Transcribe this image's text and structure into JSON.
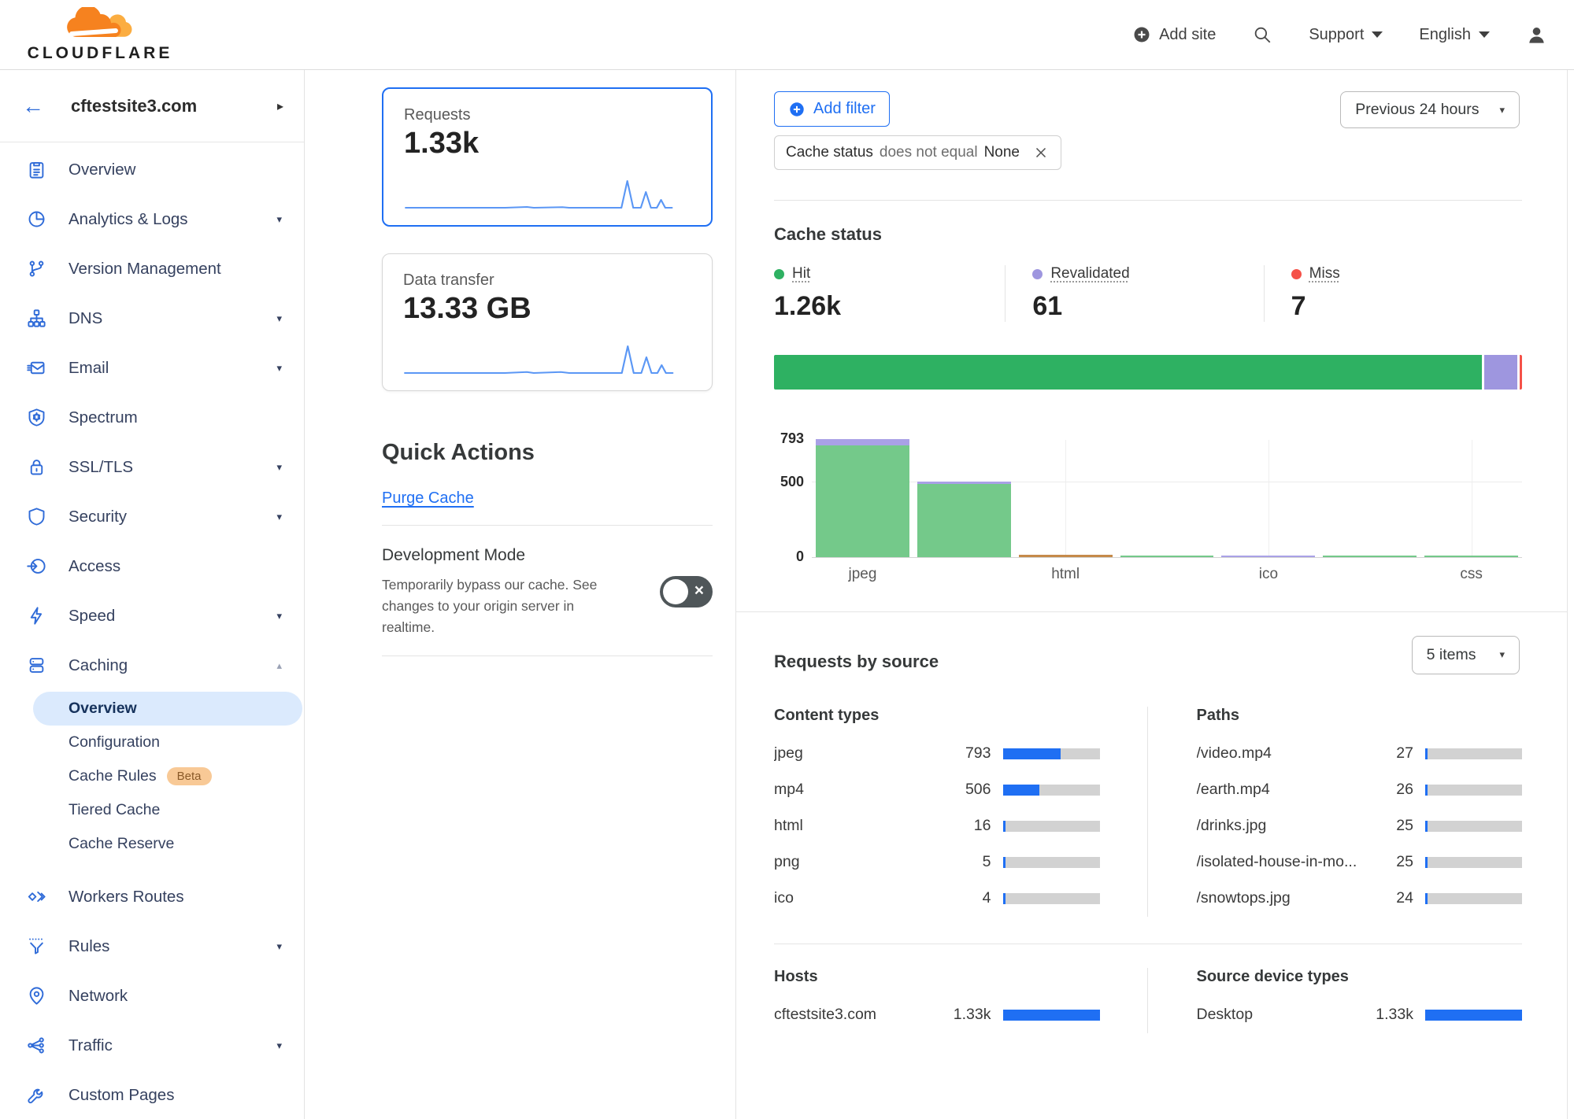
{
  "header": {
    "logo": "CLOUDFLARE",
    "add_site": "Add site",
    "support": "Support",
    "language": "English"
  },
  "sidebar": {
    "site_name": "cftestsite3.com",
    "items": [
      {
        "label": "Overview",
        "icon": "overview-icon",
        "caret": ""
      },
      {
        "label": "Analytics & Logs",
        "icon": "analytics-icon",
        "caret": "down"
      },
      {
        "label": "Version Management",
        "icon": "version-management-icon",
        "caret": ""
      },
      {
        "label": "DNS",
        "icon": "dns-icon",
        "caret": "down"
      },
      {
        "label": "Email",
        "icon": "email-icon",
        "caret": "down"
      },
      {
        "label": "Spectrum",
        "icon": "spectrum-icon",
        "caret": ""
      },
      {
        "label": "SSL/TLS",
        "icon": "ssl-tls-icon",
        "caret": "down"
      },
      {
        "label": "Security",
        "icon": "security-icon",
        "caret": "down"
      },
      {
        "label": "Access",
        "icon": "access-icon",
        "caret": ""
      },
      {
        "label": "Speed",
        "icon": "speed-icon",
        "caret": "down"
      },
      {
        "label": "Caching",
        "icon": "caching-icon",
        "caret": "up",
        "children": [
          {
            "label": "Overview",
            "active": true
          },
          {
            "label": "Configuration"
          },
          {
            "label": "Cache Rules",
            "badge": "Beta"
          },
          {
            "label": "Tiered Cache"
          },
          {
            "label": "Cache Reserve"
          }
        ]
      },
      {
        "label": "Workers Routes",
        "icon": "workers-routes-icon",
        "caret": ""
      },
      {
        "label": "Rules",
        "icon": "rules-icon",
        "caret": "down"
      },
      {
        "label": "Network",
        "icon": "network-icon",
        "caret": ""
      },
      {
        "label": "Traffic",
        "icon": "traffic-icon",
        "caret": "down"
      },
      {
        "label": "Custom Pages",
        "icon": "custom-pages-icon",
        "caret": ""
      }
    ]
  },
  "overview_cards": {
    "requests": {
      "label": "Requests",
      "value": "1.33k"
    },
    "data_transfer": {
      "label": "Data transfer",
      "value": "13.33 GB"
    }
  },
  "quick_actions": {
    "title": "Quick Actions",
    "purge_cache": "Purge Cache",
    "development_mode": {
      "title": "Development Mode",
      "description": "Temporarily bypass our cache. See changes to your origin server in realtime.",
      "state": "off"
    }
  },
  "filters": {
    "add_filter": "Add filter",
    "chip": {
      "field": "Cache status",
      "operator": "does not equal",
      "value": "None"
    },
    "time_range": "Previous 24 hours"
  },
  "cache_status": {
    "title": "Cache status",
    "stats": [
      {
        "label": "Hit",
        "value": "1.26k",
        "color": "#2eb162"
      },
      {
        "label": "Revalidated",
        "value": "61",
        "color": "#9e96df"
      },
      {
        "label": "Miss",
        "value": "7",
        "color": "#f55148"
      }
    ]
  },
  "requests_by_source": {
    "title": "Requests by source",
    "items_select": "5 items",
    "total": 1330,
    "content_types": {
      "title": "Content types",
      "rows": [
        {
          "label": "jpeg",
          "display": "793",
          "value": 793
        },
        {
          "label": "mp4",
          "display": "506",
          "value": 506
        },
        {
          "label": "html",
          "display": "16",
          "value": 16
        },
        {
          "label": "png",
          "display": "5",
          "value": 5
        },
        {
          "label": "ico",
          "display": "4",
          "value": 4
        }
      ]
    },
    "paths": {
      "title": "Paths",
      "rows": [
        {
          "label": "/video.mp4",
          "display": "27",
          "value": 27
        },
        {
          "label": "/earth.mp4",
          "display": "26",
          "value": 26
        },
        {
          "label": "/drinks.jpg",
          "display": "25",
          "value": 25
        },
        {
          "label": "/isolated-house-in-mo...",
          "display": "25",
          "value": 25
        },
        {
          "label": "/snowtops.jpg",
          "display": "24",
          "value": 24
        }
      ]
    },
    "hosts": {
      "title": "Hosts",
      "rows": [
        {
          "label": "cftestsite3.com",
          "display": "1.33k",
          "value": 1330
        }
      ]
    },
    "device_types": {
      "title": "Source device types",
      "rows": [
        {
          "label": "Desktop",
          "display": "1.33k",
          "value": 1330
        }
      ]
    }
  },
  "chart_data": [
    {
      "type": "bar",
      "variant": "stacked-horizontal",
      "title": "Cache status totals",
      "series": [
        {
          "name": "Hit",
          "value": 1260,
          "color": "#2eb162"
        },
        {
          "name": "Revalidated",
          "value": 61,
          "color": "#9e96df"
        },
        {
          "name": "Miss",
          "value": 7,
          "color": "#f55148"
        }
      ]
    },
    {
      "type": "bar",
      "variant": "stacked-vertical",
      "title": "Cache status by content type",
      "ylim": [
        0,
        793
      ],
      "yticks": [
        0,
        500,
        793
      ],
      "visible_x_labels": [
        "jpeg",
        "html",
        "ico",
        "css"
      ],
      "bars": [
        {
          "label": "jpeg",
          "segments": [
            {
              "name": "Hit",
              "value": 750
            },
            {
              "name": "Revalidated",
              "value": 43
            }
          ]
        },
        {
          "label": "",
          "segments": [
            {
              "name": "Hit",
              "value": 488
            },
            {
              "name": "Revalidated",
              "value": 18
            }
          ]
        },
        {
          "label": "html",
          "segments": [
            {
              "name": "Other",
              "value": 16,
              "color": "#c58a4a"
            }
          ]
        },
        {
          "label": "",
          "segments": [
            {
              "name": "Hit",
              "value": 5
            }
          ]
        },
        {
          "label": "ico",
          "segments": [
            {
              "name": "Revalidated",
              "value": 4
            }
          ]
        },
        {
          "label": "",
          "segments": [
            {
              "name": "Hit",
              "value": 2
            }
          ]
        },
        {
          "label": "css",
          "segments": [
            {
              "name": "Hit",
              "value": 2
            }
          ]
        }
      ]
    }
  ],
  "colors": {
    "accent_blue": "#1f6ff3",
    "sidebar_icon_blue": "#2f6bd8",
    "hit_green": "#2eb162",
    "revalidated_purple": "#9e96df",
    "miss_red": "#f55148",
    "chart_green": "#74c98a",
    "chart_purple": "#a9a1e6",
    "chart_orange": "#c58a4a",
    "bar_track_gray": "#d2d2d2",
    "active_pill_bg": "#dbeafd",
    "beta_badge_bg": "#f8c996",
    "beta_badge_text": "#8a5a28"
  }
}
